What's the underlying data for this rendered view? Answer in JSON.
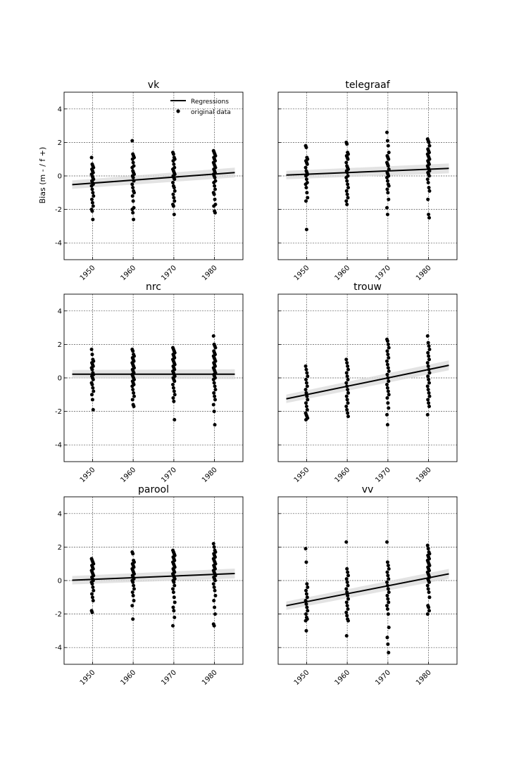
{
  "figure": {
    "ylabel": "Bias (m - / f +)",
    "legend": {
      "placement": "top-right",
      "panel": 0,
      "line_label": "Regressions",
      "scatter_label": "original data"
    }
  },
  "chart_data": [
    {
      "type": "scatter",
      "title": "vk",
      "xlim": [
        1943,
        1987
      ],
      "ylim": [
        -5,
        5
      ],
      "xticks": [
        "1950",
        "1960",
        "1970",
        "1980"
      ],
      "yticks": [
        "4",
        "2",
        "0",
        "-2",
        "-4"
      ],
      "grid": true,
      "series": [
        {
          "name": "Regressions",
          "kind": "line",
          "x": [
            1945,
            1985
          ],
          "y": [
            -0.52,
            0.2
          ]
        },
        {
          "name": "original data",
          "kind": "scatter",
          "groups": [
            {
              "x": 1950,
              "y": [
                1.1,
                0.7,
                0.6,
                0.5,
                0.4,
                0.3,
                0.2,
                0.1,
                0.0,
                -0.1,
                -0.2,
                -0.3,
                -0.4,
                -0.5,
                -0.6,
                -0.8,
                -1.0,
                -1.2,
                -1.4,
                -1.6,
                -1.8,
                -2.0,
                -2.1,
                -2.6
              ]
            },
            {
              "x": 1960,
              "y": [
                2.1,
                1.3,
                1.2,
                1.1,
                1.0,
                0.8,
                0.6,
                0.5,
                0.3,
                0.2,
                0.1,
                0.0,
                -0.1,
                -0.3,
                -0.5,
                -0.7,
                -0.9,
                -1.0,
                -1.2,
                -1.5,
                -1.9,
                -2.0,
                -2.2,
                -2.6
              ]
            },
            {
              "x": 1970,
              "y": [
                1.4,
                1.3,
                1.1,
                1.0,
                0.9,
                0.7,
                0.5,
                0.4,
                0.3,
                0.2,
                0.1,
                0.0,
                -0.1,
                -0.2,
                -0.4,
                -0.6,
                -0.7,
                -0.9,
                -1.1,
                -1.3,
                -1.5,
                -1.7,
                -1.8,
                -2.3
              ]
            },
            {
              "x": 1980,
              "y": [
                1.5,
                1.4,
                1.3,
                1.2,
                1.1,
                1.0,
                0.9,
                0.8,
                0.7,
                0.6,
                0.5,
                0.4,
                0.3,
                0.2,
                0.1,
                0.0,
                -0.1,
                -0.3,
                -0.4,
                -0.6,
                -0.8,
                -1.0,
                -1.1,
                -1.4,
                -1.7,
                -1.8,
                -2.1,
                -2.2
              ]
            }
          ]
        }
      ]
    },
    {
      "type": "scatter",
      "title": "telegraaf",
      "xlim": [
        1943,
        1987
      ],
      "ylim": [
        -5,
        5
      ],
      "xticks": [
        "1950",
        "1960",
        "1970",
        "1980"
      ],
      "yticks": [
        "4",
        "2",
        "0",
        "-2",
        "-4"
      ],
      "grid": true,
      "series": [
        {
          "name": "Regressions",
          "kind": "line",
          "x": [
            1945,
            1985
          ],
          "y": [
            0.05,
            0.45
          ]
        },
        {
          "name": "original data",
          "kind": "scatter",
          "groups": [
            {
              "x": 1950,
              "y": [
                1.8,
                1.7,
                1.1,
                1.0,
                0.9,
                0.8,
                0.7,
                0.5,
                0.3,
                0.2,
                0.1,
                0.0,
                -0.2,
                -0.4,
                -0.5,
                -0.7,
                -1.0,
                -1.3,
                -1.5,
                -3.2
              ]
            },
            {
              "x": 1960,
              "y": [
                2.0,
                1.9,
                1.4,
                1.3,
                1.2,
                1.1,
                1.0,
                0.8,
                0.6,
                0.5,
                0.4,
                0.3,
                0.2,
                0.0,
                -0.1,
                -0.3,
                -0.5,
                -0.7,
                -0.9,
                -1.1,
                -1.3,
                -1.5,
                -1.7
              ]
            },
            {
              "x": 1970,
              "y": [
                2.6,
                2.1,
                1.8,
                1.4,
                1.2,
                1.1,
                1.0,
                0.8,
                0.7,
                0.6,
                0.4,
                0.2,
                0.1,
                0.0,
                -0.1,
                -0.3,
                -0.5,
                -0.6,
                -0.8,
                -1.0,
                -1.4,
                -1.9,
                -2.3
              ]
            },
            {
              "x": 1980,
              "y": [
                2.2,
                2.1,
                2.0,
                1.8,
                1.6,
                1.5,
                1.4,
                1.3,
                1.2,
                1.1,
                1.0,
                0.9,
                0.8,
                0.7,
                0.6,
                0.5,
                0.4,
                0.3,
                0.2,
                0.1,
                0.0,
                -0.2,
                -0.4,
                -0.7,
                -0.9,
                -1.4,
                -2.3,
                -2.5
              ]
            }
          ]
        }
      ]
    },
    {
      "type": "scatter",
      "title": "nrc",
      "xlim": [
        1943,
        1987
      ],
      "ylim": [
        -5,
        5
      ],
      "xticks": [
        "1950",
        "1960",
        "1970",
        "1980"
      ],
      "yticks": [
        "4",
        "2",
        "0",
        "-2",
        "-4"
      ],
      "grid": true,
      "series": [
        {
          "name": "Regressions",
          "kind": "line",
          "x": [
            1945,
            1985
          ],
          "y": [
            0.22,
            0.22
          ]
        },
        {
          "name": "original data",
          "kind": "scatter",
          "groups": [
            {
              "x": 1950,
              "y": [
                1.7,
                1.4,
                1.1,
                1.0,
                0.9,
                0.8,
                0.7,
                0.6,
                0.5,
                0.3,
                0.2,
                0.1,
                0.0,
                -0.1,
                -0.3,
                -0.4,
                -0.6,
                -0.8,
                -1.0,
                -1.3,
                -1.9
              ]
            },
            {
              "x": 1960,
              "y": [
                1.7,
                1.6,
                1.4,
                1.3,
                1.2,
                1.1,
                1.0,
                0.9,
                0.8,
                0.7,
                0.6,
                0.5,
                0.4,
                0.3,
                0.2,
                0.1,
                0.0,
                -0.1,
                -0.2,
                -0.3,
                -0.4,
                -0.5,
                -0.7,
                -0.9,
                -1.1,
                -1.3,
                -1.6,
                -1.7
              ]
            },
            {
              "x": 1970,
              "y": [
                1.8,
                1.7,
                1.6,
                1.5,
                1.4,
                1.3,
                1.2,
                1.1,
                1.0,
                0.9,
                0.8,
                0.7,
                0.6,
                0.5,
                0.4,
                0.3,
                0.2,
                0.1,
                0.0,
                -0.1,
                -0.2,
                -0.4,
                -0.6,
                -0.8,
                -1.0,
                -1.2,
                -1.4,
                -2.5
              ]
            },
            {
              "x": 1980,
              "y": [
                2.5,
                2.0,
                1.9,
                1.8,
                1.6,
                1.5,
                1.4,
                1.3,
                1.2,
                1.1,
                1.0,
                0.9,
                0.8,
                0.7,
                0.6,
                0.5,
                0.4,
                0.3,
                0.2,
                0.1,
                0.0,
                -0.1,
                -0.3,
                -0.5,
                -0.7,
                -0.9,
                -1.1,
                -1.3,
                -1.6,
                -2.0,
                -2.8
              ]
            }
          ]
        }
      ]
    },
    {
      "type": "scatter",
      "title": "trouw",
      "xlim": [
        1943,
        1987
      ],
      "ylim": [
        -5,
        5
      ],
      "xticks": [
        "1950",
        "1960",
        "1970",
        "1980"
      ],
      "yticks": [
        "4",
        "2",
        "0",
        "-2",
        "-4"
      ],
      "grid": true,
      "series": [
        {
          "name": "Regressions",
          "kind": "line",
          "x": [
            1945,
            1985
          ],
          "y": [
            -1.25,
            0.75
          ]
        },
        {
          "name": "original data",
          "kind": "scatter",
          "groups": [
            {
              "x": 1950,
              "y": [
                0.7,
                0.5,
                0.3,
                0.1,
                -0.1,
                -0.3,
                -0.5,
                -0.7,
                -0.9,
                -1.1,
                -1.3,
                -1.5,
                -1.7,
                -1.9,
                -2.1,
                -2.2,
                -2.3,
                -2.4,
                -2.5
              ]
            },
            {
              "x": 1960,
              "y": [
                1.1,
                0.9,
                0.7,
                0.5,
                0.3,
                0.1,
                -0.1,
                -0.3,
                -0.5,
                -0.7,
                -0.9,
                -1.1,
                -1.3,
                -1.5,
                -1.7,
                -1.9,
                -2.1,
                -2.3
              ]
            },
            {
              "x": 1970,
              "y": [
                2.3,
                2.2,
                2.0,
                1.8,
                1.6,
                1.4,
                1.2,
                1.0,
                0.8,
                0.6,
                0.4,
                0.2,
                0.0,
                -0.2,
                -0.4,
                -0.6,
                -0.8,
                -1.0,
                -1.2,
                -1.5,
                -1.8,
                -2.2,
                -2.8
              ]
            },
            {
              "x": 1980,
              "y": [
                2.5,
                2.1,
                1.9,
                1.7,
                1.5,
                1.3,
                1.1,
                0.9,
                0.7,
                0.5,
                0.3,
                0.1,
                -0.1,
                -0.3,
                -0.5,
                -0.7,
                -0.9,
                -1.1,
                -1.3,
                -1.5,
                -1.7,
                -2.2
              ]
            }
          ]
        }
      ]
    },
    {
      "type": "scatter",
      "title": "parool",
      "xlim": [
        1943,
        1987
      ],
      "ylim": [
        -5,
        5
      ],
      "xticks": [
        "1950",
        "1960",
        "1970",
        "1980"
      ],
      "yticks": [
        "4",
        "2",
        "0",
        "-2",
        "-4"
      ],
      "grid": true,
      "series": [
        {
          "name": "Regressions",
          "kind": "line",
          "x": [
            1945,
            1985
          ],
          "y": [
            0.02,
            0.42
          ]
        },
        {
          "name": "original data",
          "kind": "scatter",
          "groups": [
            {
              "x": 1950,
              "y": [
                1.3,
                1.2,
                1.1,
                1.0,
                0.9,
                0.8,
                0.7,
                0.6,
                0.5,
                0.4,
                0.3,
                0.2,
                0.1,
                0.0,
                -0.1,
                -0.2,
                -0.4,
                -0.6,
                -0.8,
                -1.0,
                -1.2,
                -1.8,
                -1.9
              ]
            },
            {
              "x": 1960,
              "y": [
                1.7,
                1.6,
                1.2,
                1.1,
                1.0,
                0.9,
                0.8,
                0.7,
                0.6,
                0.5,
                0.4,
                0.3,
                0.2,
                0.1,
                0.0,
                -0.1,
                -0.3,
                -0.5,
                -0.7,
                -0.9,
                -1.2,
                -1.5,
                -2.3
              ]
            },
            {
              "x": 1970,
              "y": [
                1.8,
                1.7,
                1.6,
                1.5,
                1.4,
                1.3,
                1.2,
                1.1,
                1.0,
                0.9,
                0.8,
                0.7,
                0.6,
                0.5,
                0.4,
                0.3,
                0.2,
                0.1,
                0.0,
                -0.1,
                -0.3,
                -0.5,
                -0.7,
                -1.0,
                -1.3,
                -1.6,
                -1.8,
                -2.2,
                -2.7
              ]
            },
            {
              "x": 1980,
              "y": [
                2.2,
                2.0,
                1.8,
                1.7,
                1.6,
                1.5,
                1.4,
                1.3,
                1.2,
                1.1,
                1.0,
                0.9,
                0.8,
                0.7,
                0.6,
                0.5,
                0.4,
                0.3,
                0.2,
                0.1,
                0.0,
                -0.2,
                -0.4,
                -0.6,
                -0.9,
                -1.2,
                -1.6,
                -2.0,
                -2.6,
                -2.7
              ]
            }
          ]
        }
      ]
    },
    {
      "type": "scatter",
      "title": "vv",
      "xlim": [
        1943,
        1987
      ],
      "ylim": [
        -5,
        5
      ],
      "xticks": [
        "1950",
        "1960",
        "1970",
        "1980"
      ],
      "yticks": [
        "4",
        "2",
        "0",
        "-2",
        "-4"
      ],
      "grid": true,
      "series": [
        {
          "name": "Regressions",
          "kind": "line",
          "x": [
            1945,
            1985
          ],
          "y": [
            -1.5,
            0.4
          ]
        },
        {
          "name": "original data",
          "kind": "scatter",
          "groups": [
            {
              "x": 1950,
              "y": [
                1.9,
                1.1,
                -0.2,
                -0.4,
                -0.6,
                -0.8,
                -1.0,
                -1.2,
                -1.4,
                -1.6,
                -1.8,
                -2.0,
                -2.2,
                -2.3,
                -2.4,
                -3.0
              ]
            },
            {
              "x": 1960,
              "y": [
                2.3,
                0.7,
                0.5,
                0.3,
                0.1,
                -0.1,
                -0.3,
                -0.5,
                -0.7,
                -0.9,
                -1.1,
                -1.3,
                -1.5,
                -1.7,
                -1.9,
                -2.1,
                -2.3,
                -2.4,
                -3.3
              ]
            },
            {
              "x": 1970,
              "y": [
                2.3,
                1.1,
                0.9,
                0.7,
                0.5,
                0.3,
                0.1,
                -0.1,
                -0.3,
                -0.5,
                -0.7,
                -0.9,
                -1.1,
                -1.3,
                -1.5,
                -1.7,
                -2.0,
                -2.8,
                -3.4,
                -3.8,
                -4.3
              ]
            },
            {
              "x": 1980,
              "y": [
                2.1,
                1.9,
                1.7,
                1.6,
                1.5,
                1.4,
                1.3,
                1.2,
                1.1,
                1.0,
                0.9,
                0.8,
                0.7,
                0.6,
                0.5,
                0.4,
                0.3,
                0.2,
                0.1,
                0.0,
                -0.1,
                -0.3,
                -0.5,
                -0.7,
                -1.0,
                -1.5,
                -1.6,
                -1.8,
                -2.0
              ]
            }
          ]
        }
      ]
    }
  ]
}
